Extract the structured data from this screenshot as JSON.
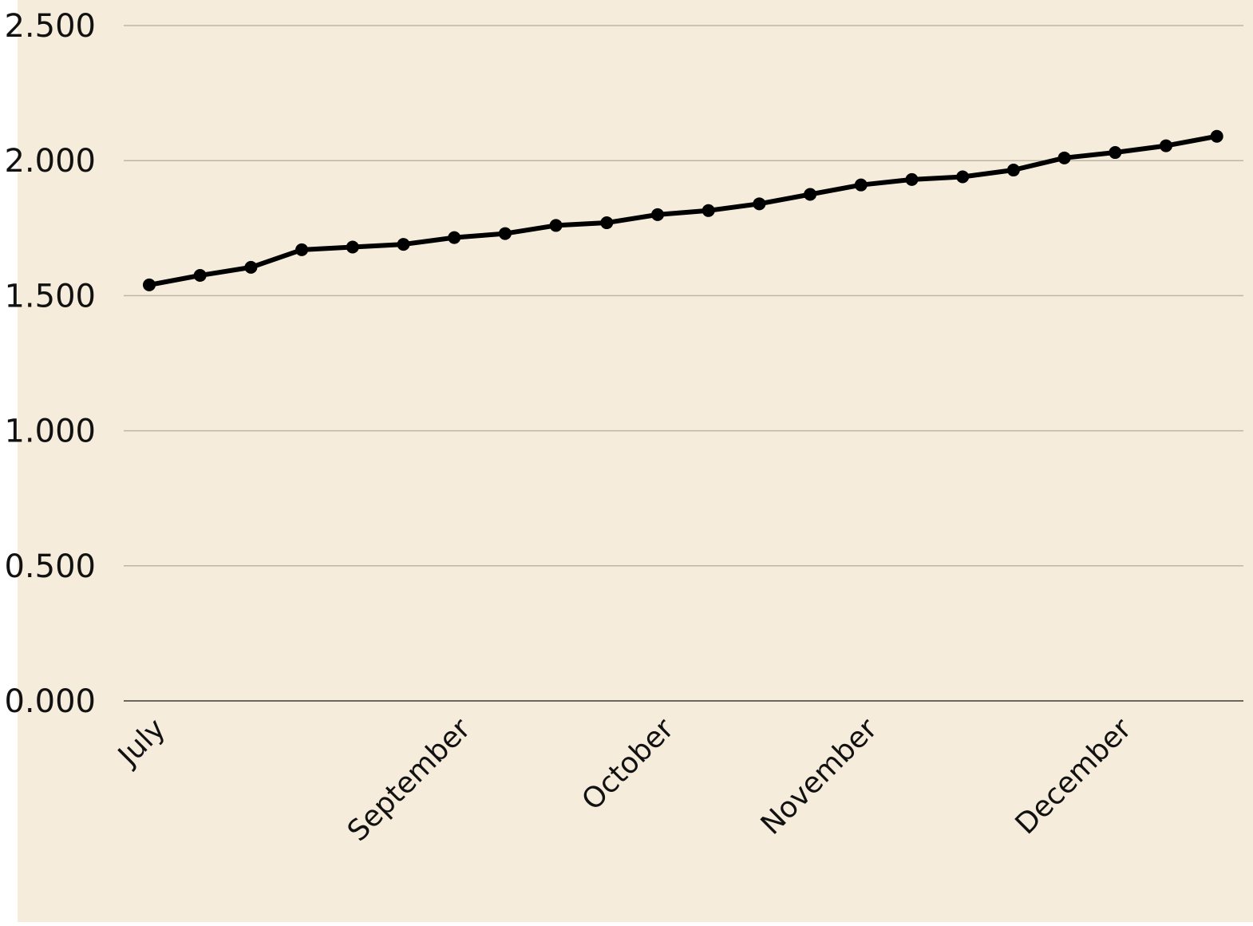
{
  "chart_data": {
    "type": "line",
    "title": "",
    "xlabel": "",
    "ylabel": "",
    "grid": true,
    "ylim": [
      0.0,
      2.5
    ],
    "y_ticks": [
      "0.000",
      "0.500",
      "1.000",
      "1.500",
      "2.000",
      "2.500"
    ],
    "y_tick_values": [
      0.0,
      0.5,
      1.0,
      1.5,
      2.0,
      2.5
    ],
    "x_tick_labels": [
      {
        "label": "July",
        "index": 0
      },
      {
        "label": "September",
        "index": 6
      },
      {
        "label": "October",
        "index": 10
      },
      {
        "label": "November",
        "index": 14
      },
      {
        "label": "December",
        "index": 19
      }
    ],
    "series": [
      {
        "values": [
          1.54,
          1.575,
          1.605,
          1.67,
          1.68,
          1.69,
          1.715,
          1.73,
          1.76,
          1.77,
          1.8,
          1.815,
          1.84,
          1.875,
          1.91,
          1.93,
          1.94,
          1.965,
          2.01,
          2.03,
          2.055,
          2.09
        ]
      }
    ]
  },
  "colors": {
    "background": "#f5ecdb",
    "page": "#ffffff",
    "line": "#000000",
    "grid": "#bdb6a6",
    "baseline": "#6b665e"
  }
}
